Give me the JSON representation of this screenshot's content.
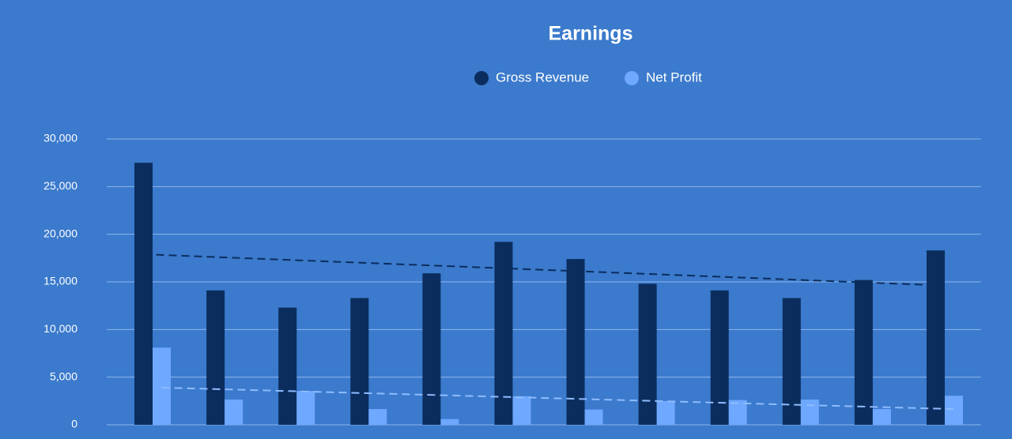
{
  "chart_data": {
    "type": "bar",
    "title": "Earnings",
    "categories": [
      null,
      null,
      null,
      null,
      null,
      null,
      null,
      null,
      null,
      null,
      null,
      null
    ],
    "series": [
      {
        "name": "Gross Revenue",
        "color": "#0b2d5e",
        "values": [
          27500,
          14100,
          12300,
          13300,
          15900,
          19200,
          17400,
          14800,
          14100,
          13300,
          15200,
          18300
        ],
        "trend": [
          17900,
          14650
        ]
      },
      {
        "name": "Net Profit",
        "color": "#6ea8ff",
        "values": [
          8100,
          2650,
          3550,
          1650,
          600,
          3000,
          1600,
          2500,
          2600,
          2650,
          1650,
          3050
        ],
        "trend": [
          3900,
          1650
        ]
      }
    ],
    "ylim": [
      0,
      30000
    ],
    "yticks": [
      0,
      {
        "value": 5000,
        "label": "5,000"
      },
      {
        "value": 10000,
        "label": "10,000"
      },
      {
        "value": 15000,
        "label": "15,000"
      },
      {
        "value": 20000,
        "label": "20,000"
      },
      {
        "value": 25000,
        "label": "25,000"
      },
      {
        "value": 30000,
        "label": "30,000"
      }
    ],
    "grid": true,
    "legend": "top"
  }
}
